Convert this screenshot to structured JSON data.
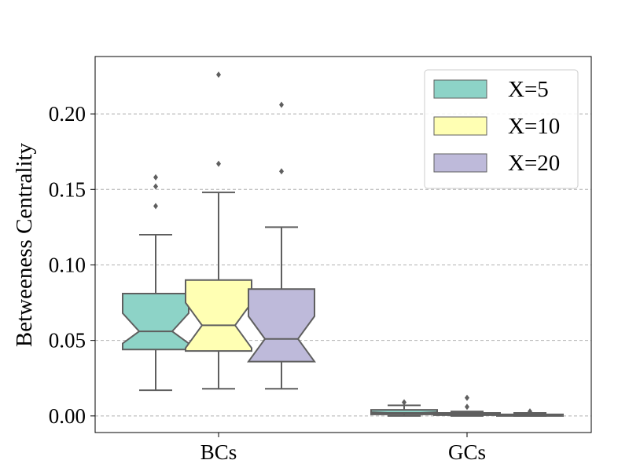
{
  "chart_data": {
    "type": "boxplot",
    "title": "",
    "xlabel": "",
    "ylabel": "Betweeness Centrality",
    "ylim": [
      -0.011,
      0.238
    ],
    "yticks": [
      0.0,
      0.05,
      0.1,
      0.15,
      0.2
    ],
    "ytick_labels": [
      "0.00",
      "0.05",
      "0.10",
      "0.15",
      "0.20"
    ],
    "grid": "horizontal-dashed",
    "notched": true,
    "legend_position": "top-right",
    "categories": [
      "BCs",
      "GCs"
    ],
    "series": [
      {
        "name": "X=5",
        "color": "#8dd3c7",
        "boxes": [
          {
            "q1": 0.044,
            "median": 0.056,
            "q3": 0.081,
            "whisker_low": 0.017,
            "whisker_high": 0.12,
            "notch_low": 0.048,
            "notch_high": 0.068,
            "outliers": [
              0.139,
              0.152,
              0.158
            ]
          },
          {
            "q1": 0.001,
            "median": 0.002,
            "q3": 0.004,
            "whisker_low": 0.0,
            "whisker_high": 0.007,
            "notch_low": 0.0015,
            "notch_high": 0.0025,
            "outliers": [
              0.009
            ]
          }
        ]
      },
      {
        "name": "X=10",
        "color": "#ffffb3",
        "boxes": [
          {
            "q1": 0.043,
            "median": 0.06,
            "q3": 0.09,
            "whisker_low": 0.018,
            "whisker_high": 0.148,
            "notch_low": 0.045,
            "notch_high": 0.075,
            "outliers": [
              0.167,
              0.226
            ]
          },
          {
            "q1": 0.0005,
            "median": 0.001,
            "q3": 0.002,
            "whisker_low": 0.0,
            "whisker_high": 0.003,
            "notch_low": 0.0007,
            "notch_high": 0.0015,
            "outliers": [
              0.006,
              0.012
            ]
          }
        ]
      },
      {
        "name": "X=20",
        "color": "#bebada",
        "boxes": [
          {
            "q1": 0.036,
            "median": 0.051,
            "q3": 0.084,
            "whisker_low": 0.018,
            "whisker_high": 0.125,
            "notch_low": 0.036,
            "notch_high": 0.066,
            "outliers": [
              0.162,
              0.206
            ]
          },
          {
            "q1": 0.0,
            "median": 0.0005,
            "q3": 0.001,
            "whisker_low": 0.0,
            "whisker_high": 0.002,
            "notch_low": 0.0002,
            "notch_high": 0.0008,
            "outliers": [
              0.003
            ]
          }
        ]
      }
    ]
  }
}
